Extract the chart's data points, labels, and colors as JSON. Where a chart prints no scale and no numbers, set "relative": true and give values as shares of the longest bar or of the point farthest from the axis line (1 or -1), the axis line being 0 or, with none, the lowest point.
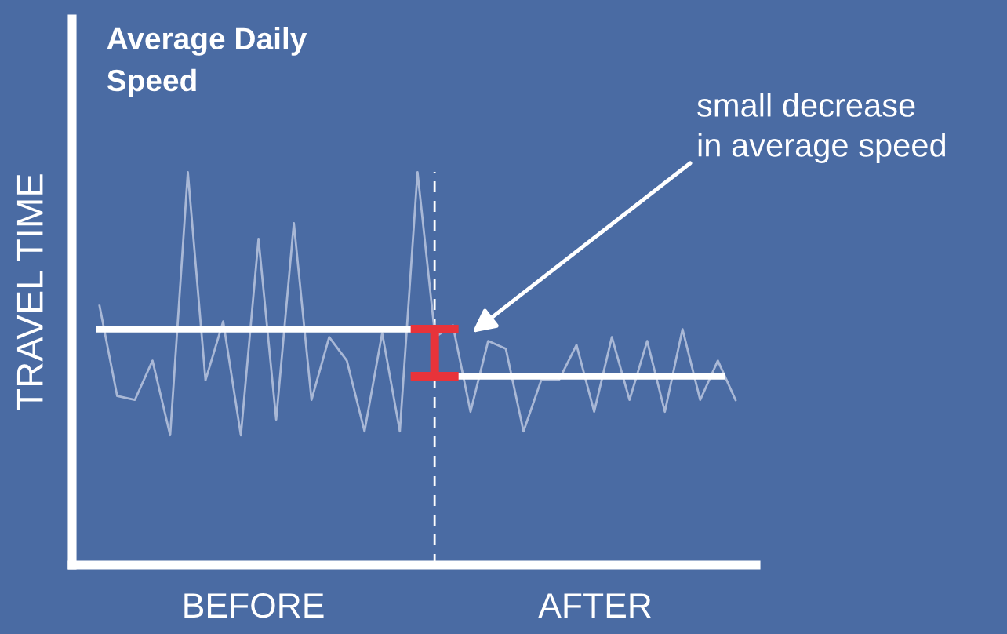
{
  "chart_data": {
    "type": "line",
    "title": "Average Daily\nSpeed",
    "ylabel": "TRAVEL TIME",
    "relative": true,
    "categories": [
      null,
      null,
      null,
      null,
      null,
      null,
      null,
      null,
      null,
      null,
      null,
      null,
      null,
      null,
      null,
      null,
      null,
      null,
      null,
      null,
      null,
      null,
      null,
      null,
      null,
      null,
      null,
      null,
      null,
      null,
      null,
      null,
      null,
      null,
      null,
      null,
      null
    ],
    "series": [
      {
        "color": "#a9b8d6",
        "values": [
          0.66,
          0.43,
          0.42,
          0.52,
          0.33,
          1.0,
          0.47,
          0.62,
          0.33,
          0.83,
          0.37,
          0.87,
          0.42,
          0.58,
          0.52,
          0.34,
          0.59,
          0.34,
          1.0,
          0.58,
          0.61,
          0.39,
          0.57,
          0.55,
          0.34,
          0.47,
          0.47,
          0.56,
          0.39,
          0.58,
          0.42,
          0.57,
          0.39,
          0.6,
          0.42,
          0.52,
          0.42
        ]
      }
    ],
    "ref_lines": [
      {
        "axis": "y",
        "value": 0.6,
        "color": "#ffffff"
      },
      {
        "axis": "y",
        "value": 0.48,
        "color": "#ffffff"
      }
    ],
    "annotations": [
      "small decrease\nin average speed",
      "BEFORE",
      "AFTER"
    ]
  }
}
